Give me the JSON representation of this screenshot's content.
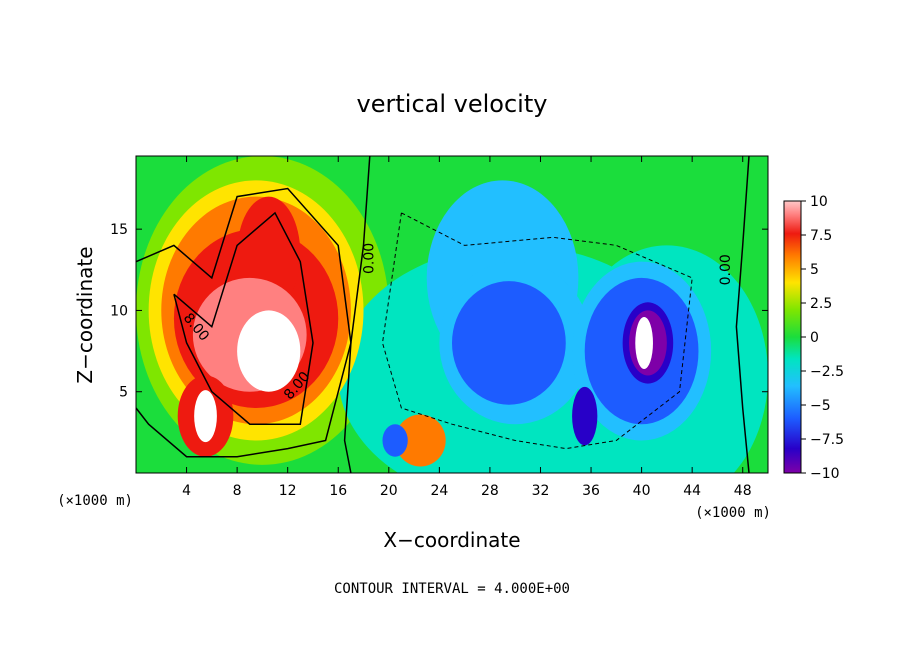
{
  "chart_data": {
    "type": "heatmap",
    "title": "vertical velocity",
    "xlabel": "X−coordinate",
    "ylabel": "Z−coordinate",
    "x_unit": "(×1000 m)",
    "x_ticks": [
      4,
      8,
      12,
      16,
      20,
      24,
      28,
      32,
      36,
      40,
      44,
      48
    ],
    "y_ticks": [
      5,
      10,
      15
    ],
    "xlim": [
      0,
      50
    ],
    "ylim": [
      0,
      19.5
    ],
    "colorbar": {
      "ticks": [
        10,
        7.5,
        5,
        2.5,
        0,
        -2.5,
        -5,
        -7.5,
        -10
      ],
      "tick_labels": [
        "10",
        "7.5",
        "5",
        "2.5",
        "0",
        "−2.5",
        "−5",
        "−7.5",
        "−10"
      ],
      "range": [
        -10,
        10
      ],
      "colors": [
        "#7e00a8",
        "#2800c8",
        "#1d5cff",
        "#22bfff",
        "#00e5c0",
        "#1bdd3c",
        "#7fe600",
        "#ffe400",
        "#ff7a00",
        "#ee1a10",
        "#ff8080",
        "#ffffff"
      ]
    },
    "contour_interval": 4.0,
    "contour_labels": [
      "8.00",
      "8.00",
      "0.00",
      "0.00"
    ],
    "features": [
      {
        "kind": "updraft",
        "x": 9.5,
        "z": 9.5,
        "peak": 12
      },
      {
        "kind": "updraft",
        "x": 5.5,
        "z": 3.0,
        "peak": 10
      },
      {
        "kind": "updraft",
        "x": 22.5,
        "z": 2.0,
        "peak": 6
      },
      {
        "kind": "downdraft",
        "x": 40.5,
        "z": 8.0,
        "peak": -12
      },
      {
        "kind": "downdraft",
        "x": 30.0,
        "z": 7.0,
        "peak": -7
      },
      {
        "kind": "downdraft",
        "x": 35.5,
        "z": 3.5,
        "peak": -8
      }
    ]
  },
  "footer": "CONTOUR INTERVAL = 4.000E+00"
}
